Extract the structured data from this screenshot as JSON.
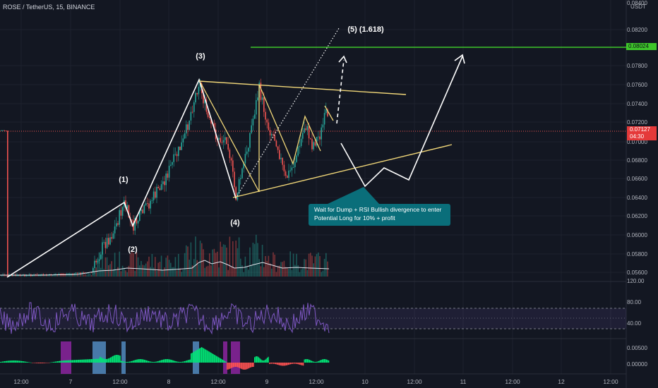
{
  "header": {
    "symbol": "ROSE / TetherUS, 15, BINANCE"
  },
  "price_axis": {
    "unit": "USDT",
    "ticks": [
      "0.08400",
      "0.08200",
      "0.07800",
      "0.07600",
      "0.07400",
      "0.07200",
      "0.07000",
      "0.06800",
      "0.06600",
      "0.06400",
      "0.06200",
      "0.06000",
      "0.05800",
      "0.05600"
    ],
    "target_label": "0.08024",
    "current_price": "0.07127",
    "countdown": "04:30"
  },
  "rsi_axis": {
    "ticks": [
      "120.00",
      "80.00",
      "40.00"
    ]
  },
  "macd_axis": {
    "ticks": [
      "0.00500",
      "0.00000"
    ]
  },
  "time_axis": {
    "ticks": [
      "12:00",
      "7",
      "12:00",
      "8",
      "12:00",
      "9",
      "12:00",
      "10",
      "12:00",
      "11",
      "12:00",
      "12",
      "12:00"
    ]
  },
  "annotations": {
    "wave1": "(1)",
    "wave2": "(2)",
    "wave3": "(3)",
    "wave4": "(4)",
    "wave5": "(5) (1.618)",
    "callout_line1": "Wait for Dump + RSI Bullish divergence to enter",
    "callout_line2": "Potential Long for 10% + profit"
  },
  "colors": {
    "background": "#131722",
    "up_candle": "#26a69a",
    "down_candle": "#ef5350",
    "trendline": "#f0d678",
    "target_line": "#3ec52a",
    "rsi": "#7e57c2",
    "callout": "#0a6e7a"
  }
}
